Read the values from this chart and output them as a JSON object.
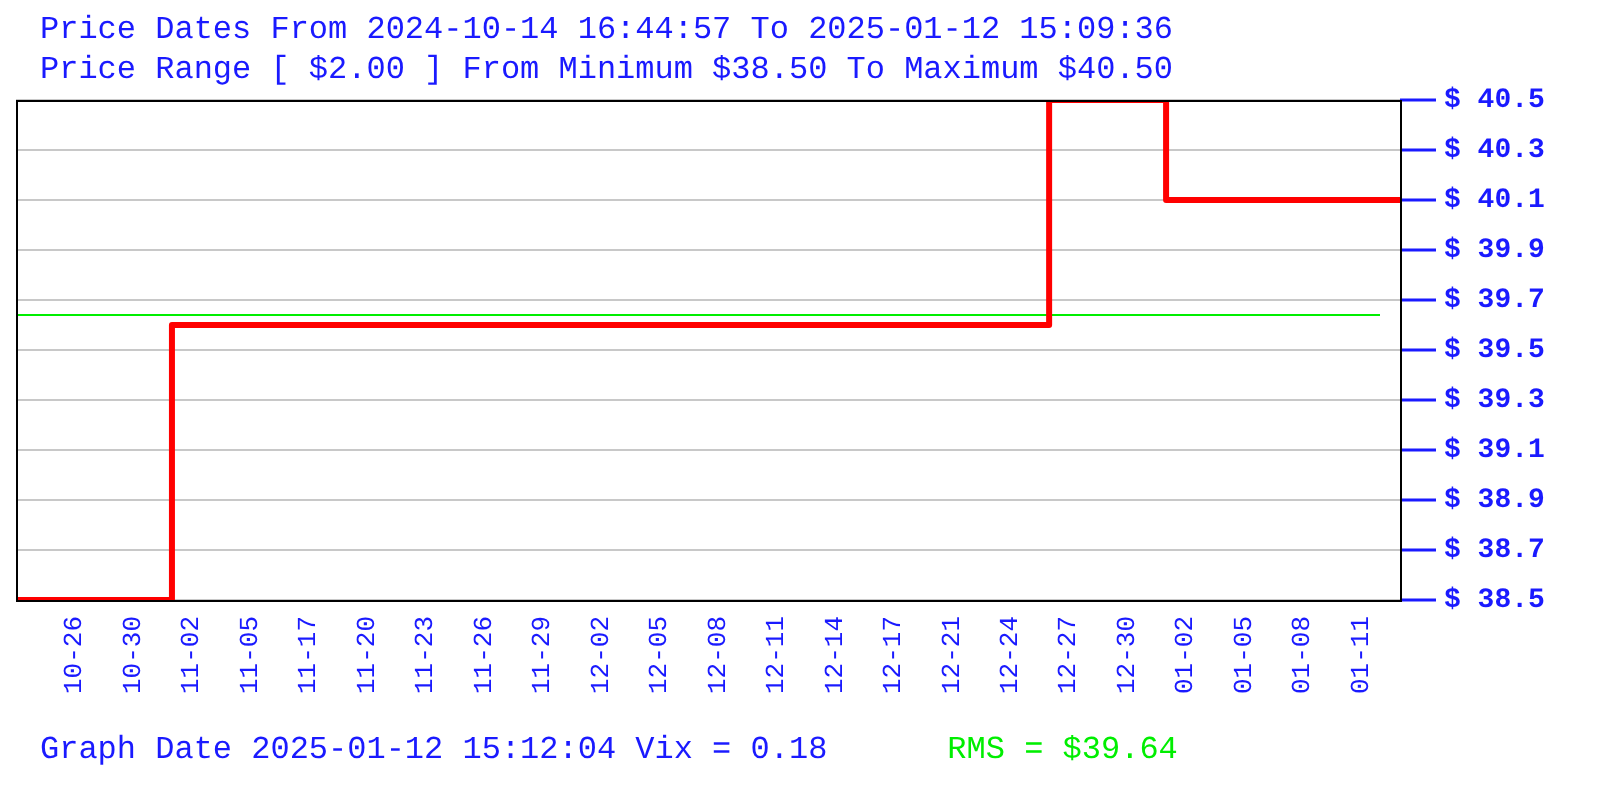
{
  "chart_data": {
    "type": "step",
    "title": "Price Dates From 2024-10-14 16:44:57 To 2025-01-12 15:09:36",
    "subtitle": "Price Range [ $2.00 ] From Minimum $38.50 To Maximum $40.50",
    "annotations": [
      "Graph Date 2025-01-12 15:12:04 Vix = 0.18"
    ],
    "categories": [
      null,
      null,
      null,
      "10-26",
      null,
      null,
      "10-30",
      null,
      null,
      "11-02",
      null,
      null,
      "11-05",
      null,
      null,
      "11-17",
      null,
      null,
      "11-20",
      null,
      null,
      "11-23",
      null,
      null,
      "11-26",
      null,
      null,
      "11-29",
      null,
      null,
      "12-02",
      null,
      null,
      "12-05",
      null,
      null,
      "12-08",
      null,
      null,
      "12-11",
      null,
      null,
      "12-14",
      null,
      null,
      "12-17",
      null,
      null,
      "12-21",
      null,
      null,
      "12-24",
      null,
      null,
      "12-27",
      null,
      null,
      "12-30",
      null,
      null,
      "01-02",
      null,
      null,
      "01-05",
      null,
      null,
      "01-08",
      null,
      null,
      "01-11",
      null,
      null
    ],
    "series": [
      {
        "color": "#ff0000",
        "values": [
          38.5,
          38.5,
          38.5,
          38.5,
          38.5,
          38.5,
          38.5,
          38.5,
          39.6,
          39.6,
          39.6,
          39.6,
          39.6,
          39.6,
          39.6,
          39.6,
          39.6,
          39.6,
          39.6,
          39.6,
          39.6,
          39.6,
          39.6,
          39.6,
          39.6,
          39.6,
          39.6,
          39.6,
          39.6,
          39.6,
          39.6,
          39.6,
          39.6,
          39.6,
          39.6,
          39.6,
          39.6,
          39.6,
          39.6,
          39.6,
          39.6,
          39.6,
          39.6,
          39.6,
          39.6,
          39.6,
          39.6,
          39.6,
          39.6,
          39.6,
          39.6,
          39.6,
          39.6,
          40.5,
          40.5,
          40.5,
          40.5,
          40.5,
          40.5,
          40.1,
          40.1,
          40.1,
          40.1,
          40.1,
          40.1,
          40.1,
          40.1,
          40.1,
          40.1,
          40.1,
          40.1,
          40.1
        ]
      }
    ],
    "ylim": [
      38.5,
      40.5
    ],
    "yticks": [
      {
        "value": 38.5,
        "label": "$ 38.5"
      },
      {
        "value": 38.7,
        "label": "$ 38.7"
      },
      {
        "value": 38.9,
        "label": "$ 38.9"
      },
      {
        "value": 39.1,
        "label": "$ 39.1"
      },
      {
        "value": 39.3,
        "label": "$ 39.3"
      },
      {
        "value": 39.5,
        "label": "$ 39.5"
      },
      {
        "value": 39.7,
        "label": "$ 39.7"
      },
      {
        "value": 39.9,
        "label": "$ 39.9"
      },
      {
        "value": 40.1,
        "label": "$ 40.1"
      },
      {
        "value": 40.3,
        "label": "$ 40.3"
      },
      {
        "value": 40.5,
        "label": "$ 40.5"
      }
    ],
    "ref_lines": [
      {
        "axis": "y",
        "value": 39.64,
        "label": "RMS = $39.64",
        "color": "#00ee00"
      }
    ],
    "grid": "y",
    "legend": false,
    "marker": "none",
    "line_style": "solid"
  }
}
